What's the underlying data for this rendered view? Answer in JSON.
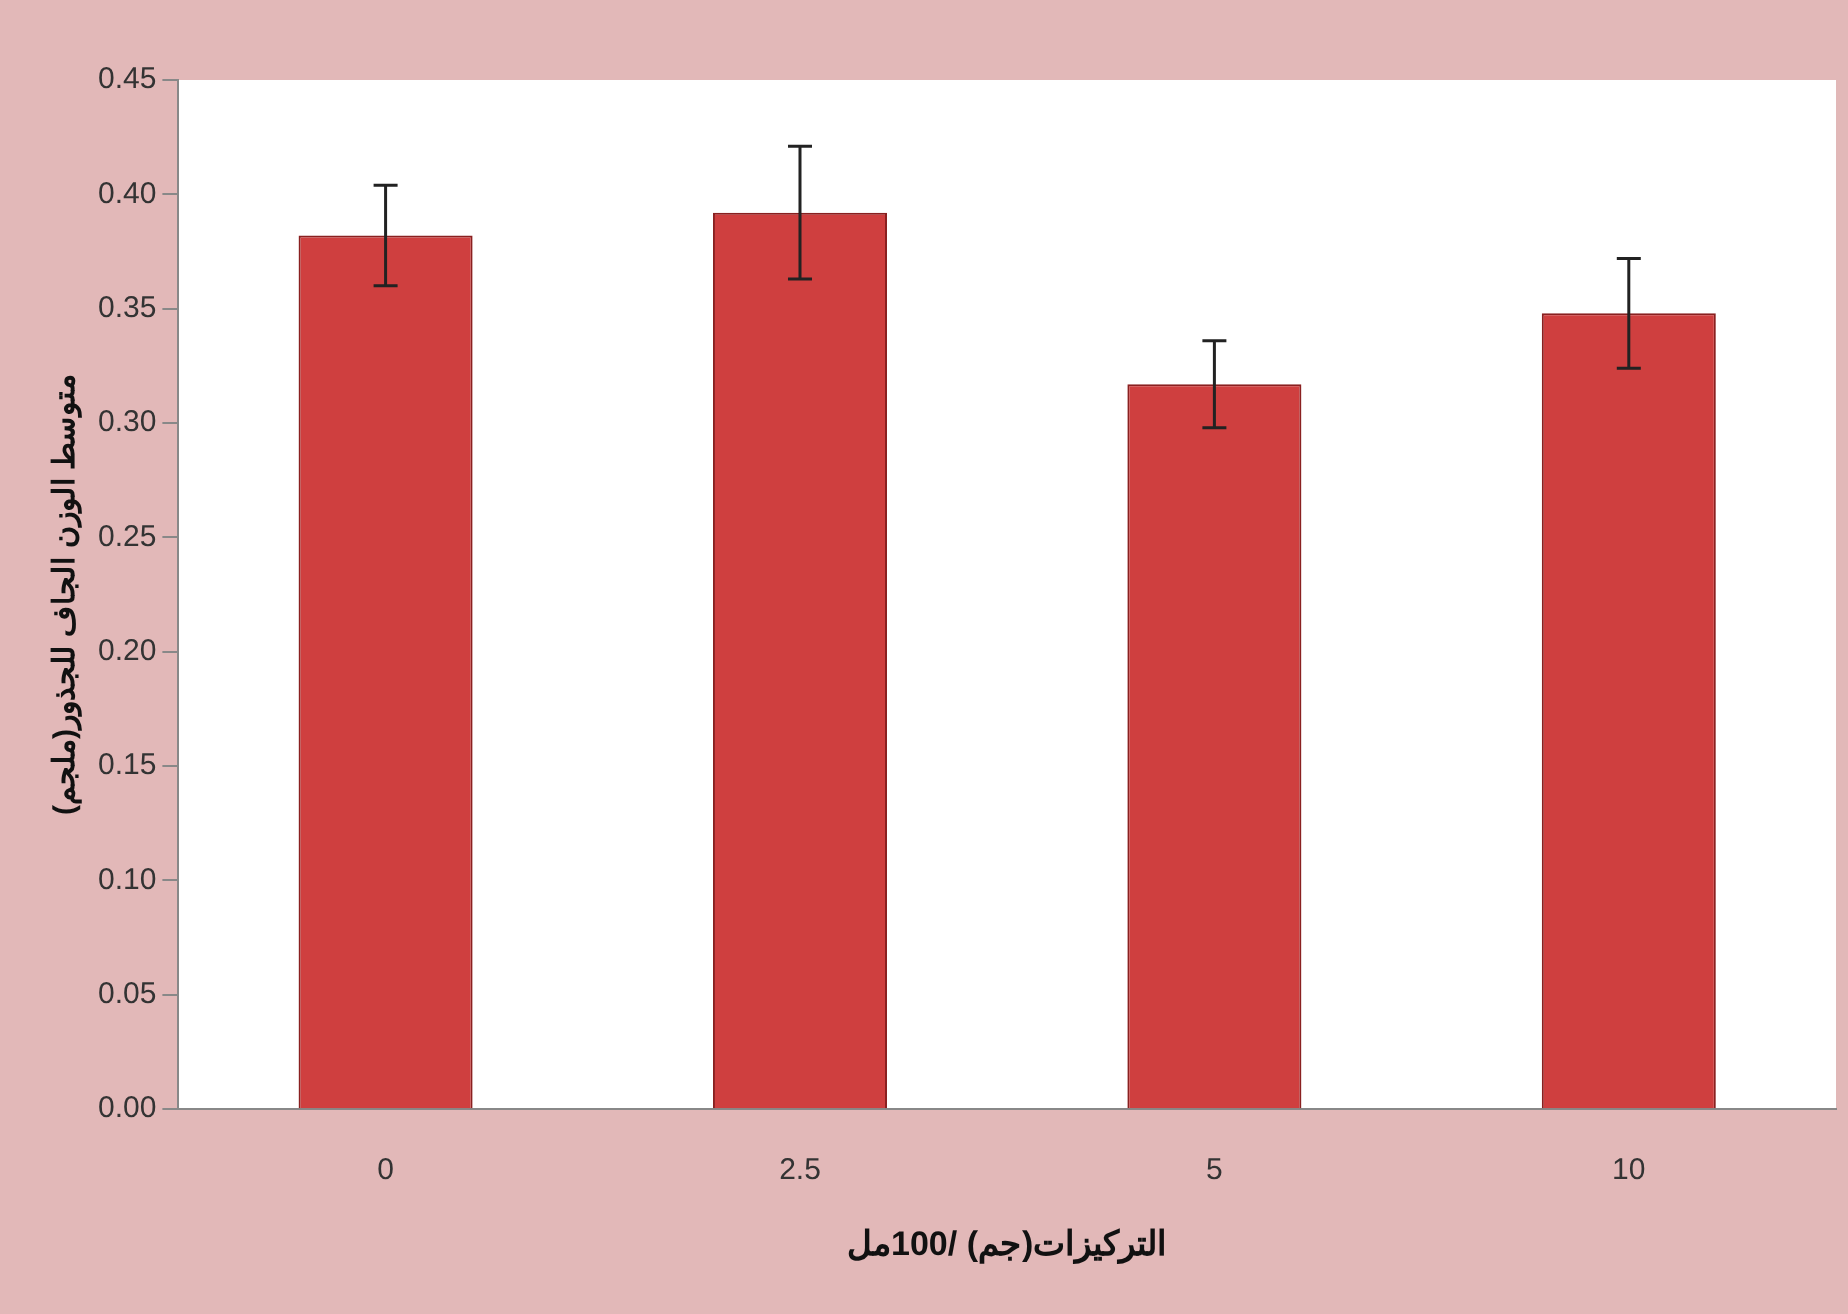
{
  "chart_data": {
    "type": "bar",
    "xlabel": "التركيزات(جم) /100مل",
    "ylabel": "متوسط الوزن الجاف للجذور(ملجم)",
    "categories": [
      "0",
      "2.5",
      "5",
      "10"
    ],
    "values": [
      0.382,
      0.392,
      0.317,
      0.348
    ],
    "errors": [
      0.022,
      0.029,
      0.019,
      0.024
    ],
    "color": "#cf3f3f",
    "ylim": [
      0,
      0.45
    ],
    "yticks": [
      {
        "value": 0,
        "label": "0.00"
      },
      {
        "value": 0.05,
        "label": "0.05"
      },
      {
        "value": 0.1,
        "label": "0.10"
      },
      {
        "value": 0.15,
        "label": "0.15"
      },
      {
        "value": 0.2,
        "label": "0.20"
      },
      {
        "value": 0.25,
        "label": "0.25"
      },
      {
        "value": 0.3,
        "label": "0.30"
      },
      {
        "value": 0.35,
        "label": "0.35"
      },
      {
        "value": 0.4,
        "label": "0.40"
      },
      {
        "value": 0.45,
        "label": "0.45"
      }
    ],
    "grid": false,
    "legend": false
  }
}
